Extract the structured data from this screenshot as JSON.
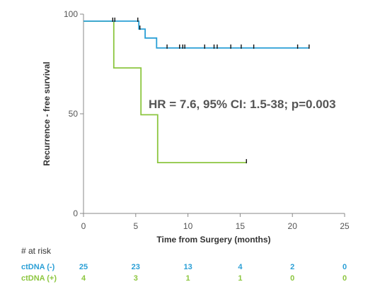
{
  "chart_data": {
    "type": "line",
    "subtype": "kaplan-meier step",
    "title": "",
    "xlabel": "Time from Surgery (months)",
    "ylabel": "Recurrence - free survival",
    "xlim": [
      0,
      25
    ],
    "ylim": [
      0,
      100
    ],
    "xticks": [
      0,
      5,
      10,
      15,
      20,
      25
    ],
    "yticks": [
      0,
      50,
      100
    ],
    "grid": false,
    "annotation": "HR = 7.6, 95% CI: 1.5-38; p=0.003",
    "series": [
      {
        "name": "ctDNA (-)",
        "color": "#2a9fd6",
        "steps": [
          [
            0,
            96.5
          ],
          [
            5.3,
            96.5
          ],
          [
            5.3,
            92.5
          ],
          [
            5.9,
            92.5
          ],
          [
            5.9,
            88.0
          ],
          [
            7.0,
            88.0
          ],
          [
            7.0,
            83.0
          ],
          [
            21.6,
            83.0
          ]
        ],
        "censored": [
          2.8,
          3.0,
          5.2,
          5.4,
          8.0,
          9.2,
          9.5,
          9.7,
          11.6,
          12.5,
          12.8,
          14.1,
          15.1,
          16.3,
          20.5,
          21.6
        ]
      },
      {
        "name": "ctDNA (+)",
        "color": "#8cc63f",
        "steps": [
          [
            0,
            96.5
          ],
          [
            2.9,
            96.5
          ],
          [
            2.9,
            73.0
          ],
          [
            5.5,
            73.0
          ],
          [
            5.5,
            49.5
          ],
          [
            7.1,
            49.5
          ],
          [
            7.1,
            25.5
          ],
          [
            15.6,
            25.5
          ]
        ],
        "censored": [
          15.6
        ]
      }
    ],
    "risk_table": {
      "heading": "# at risk",
      "times": [
        0,
        5,
        10,
        15,
        20,
        25
      ],
      "rows": [
        {
          "label": "ctDNA (-)",
          "color": "#2a9fd6",
          "counts": [
            "25",
            "23",
            "13",
            "4",
            "2",
            "0"
          ]
        },
        {
          "label": "ctDNA (+)",
          "color": "#8cc63f",
          "counts": [
            "4",
            "3",
            "1",
            "1",
            "0",
            "0"
          ]
        }
      ]
    }
  }
}
